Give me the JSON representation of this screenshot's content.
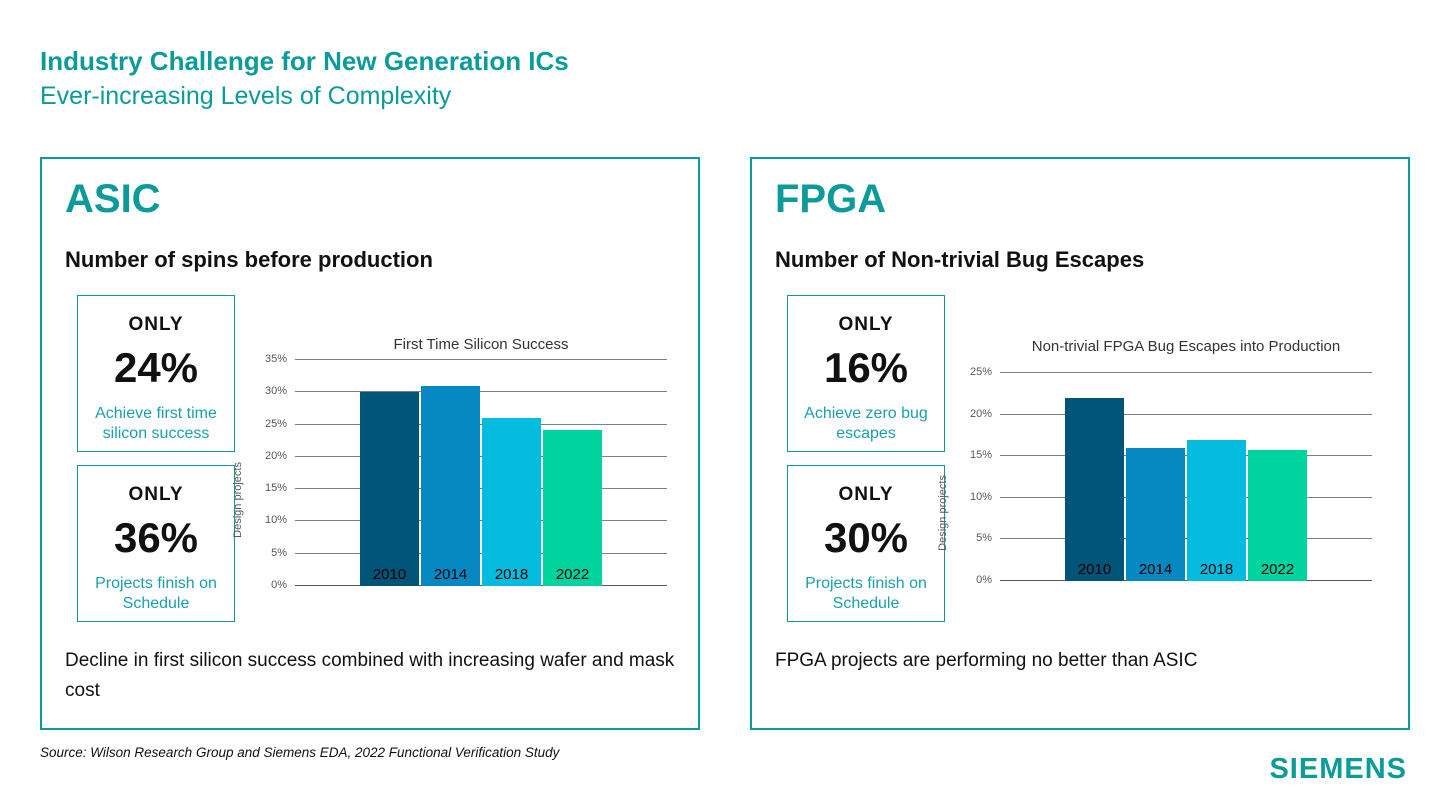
{
  "header": {
    "title": "Industry Challenge for New Generation ICs",
    "subtitle": "Ever-increasing Levels of Complexity"
  },
  "colors": {
    "accent": "#0c9b9b",
    "stat_desc": "#1ba0ab",
    "gridline": "#808080",
    "tick_label": "#595959"
  },
  "panels": [
    {
      "id": "asic",
      "heading": "ASIC",
      "subtitle": "Number of spins before production",
      "stats": [
        {
          "kicker": "ONLY",
          "value": "24%",
          "desc": "Achieve first time silicon success"
        },
        {
          "kicker": "ONLY",
          "value": "36%",
          "desc": "Projects finish on Schedule"
        }
      ],
      "note": "Decline in first silicon success combined with increasing wafer and mask cost"
    },
    {
      "id": "fpga",
      "heading": "FPGA",
      "subtitle": "Number of Non-trivial Bug Escapes",
      "stats": [
        {
          "kicker": "ONLY",
          "value": "16%",
          "desc": "Achieve zero bug escapes"
        },
        {
          "kicker": "ONLY",
          "value": "30%",
          "desc": "Projects finish on Schedule"
        }
      ],
      "note": "FPGA projects are performing no better than ASIC"
    }
  ],
  "chart_data": [
    {
      "type": "bar",
      "title": "First Time Silicon Success",
      "ylabel": "Design projects",
      "categories": [
        "2010",
        "2014",
        "2018",
        "2022"
      ],
      "values": [
        30,
        31,
        26,
        24.2
      ],
      "ylim": [
        0,
        35
      ],
      "ytick_step": 5,
      "ytick_format": "percent",
      "grid": true,
      "legend": "none",
      "bar_colors": [
        "#005478",
        "#0689c2",
        "#05bcdf",
        "#00d49e"
      ]
    },
    {
      "type": "bar",
      "title": "Non-trivial FPGA Bug Escapes into Production",
      "ylabel": "Design projects",
      "categories": [
        "2010",
        "2014",
        "2018",
        "2022"
      ],
      "values": [
        22,
        16,
        17,
        15.8
      ],
      "ylim": [
        0,
        25
      ],
      "ytick_step": 5,
      "ytick_format": "percent",
      "grid": true,
      "legend": "none",
      "bar_colors": [
        "#005478",
        "#0689c2",
        "#05bcdf",
        "#00d49e"
      ]
    }
  ],
  "source": "Source:  Wilson Research Group and Siemens EDA, 2022 Functional Verification Study",
  "brand": {
    "logo": "SIEMENS"
  }
}
